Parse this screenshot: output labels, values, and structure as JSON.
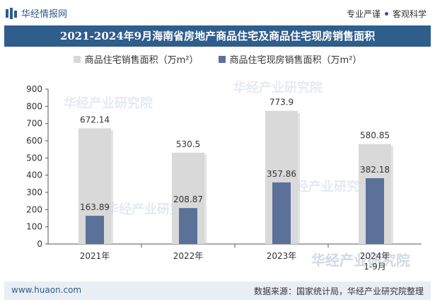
{
  "header": {
    "brand": "华经情报网",
    "tagline_left": "专业严谨",
    "tagline_right": "客观科学"
  },
  "title": "2021-2024年9月海南省房地产商品住宅及商品住宅现房销售面积",
  "watermark_text": "华经产业研究院",
  "footer": {
    "website": "www.huaon.com",
    "source": "数据来源：国家统计局，华经产业研究院整理"
  },
  "colors": {
    "title_bg": "#2f5d8c",
    "series1": "#d9d9d9",
    "series2": "#5b7199"
  },
  "chart_data": {
    "type": "bar",
    "title": "2021-2024年9月海南省房地产商品住宅及商品住宅现房销售面积",
    "categories": [
      "2021年",
      "2022年",
      "2023年",
      "2024年\n1-9月"
    ],
    "series": [
      {
        "name": "商品住宅销售面积（万m²）",
        "values": [
          672.14,
          530.5,
          773.9,
          580.85
        ],
        "labels": [
          "672.14",
          "530.5",
          "773.9",
          "580.85"
        ]
      },
      {
        "name": "商品住宅现房销售面积（万m²）",
        "values": [
          163.89,
          208.87,
          357.86,
          382.18
        ],
        "labels": [
          "163.89",
          "208.87",
          "357.86",
          "382.18"
        ]
      }
    ],
    "yticks": [
      "0",
      "100",
      "200",
      "300",
      "400",
      "500",
      "600",
      "700",
      "800",
      "900"
    ],
    "ylim": [
      0,
      900
    ],
    "xlabel": "",
    "ylabel": "",
    "legend_position": "top-center",
    "grid": false
  }
}
